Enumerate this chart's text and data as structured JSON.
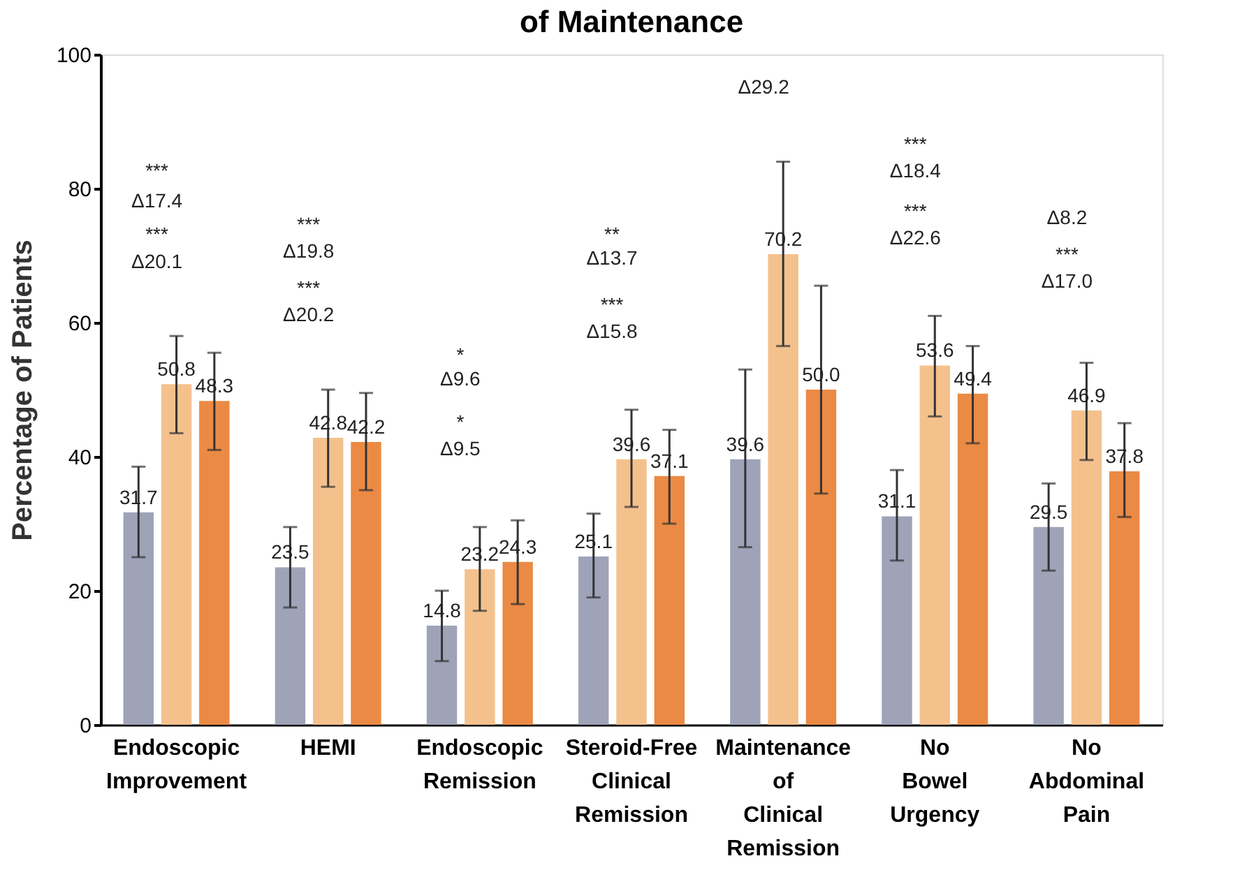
{
  "chart_data": {
    "type": "bar",
    "title": "of Maintenance",
    "ylabel": "Percentage of Patients",
    "categories": [
      "Endoscopic Improvement",
      "HEMI",
      "Endoscopic Remission",
      "Steroid-Free Clinical Remission",
      "Maintenance of Clinical Remission",
      "No Bowel Urgency",
      "No Abdominal Pain"
    ],
    "series": [
      {
        "color": "#9ea3b8",
        "values": [
          31.7,
          23.5,
          14.8,
          25.1,
          39.6,
          31.1,
          29.5
        ],
        "value_labels": [
          "31.7",
          "23.5",
          "14.8",
          "25.1",
          "39.6",
          "31.1",
          "29.5"
        ],
        "errors": [
          [
            25,
            38.5
          ],
          [
            17.5,
            29.5
          ],
          [
            9.5,
            20
          ],
          [
            19,
            31.5
          ],
          [
            26.5,
            53
          ],
          [
            24.5,
            38
          ],
          [
            23,
            36
          ]
        ]
      },
      {
        "color": "#f4c18d",
        "values": [
          50.8,
          42.8,
          23.2,
          39.6,
          70.2,
          53.6,
          46.9
        ],
        "value_labels": [
          "50.8",
          "42.8",
          "23.2",
          "39.6",
          "70.2",
          "53.6",
          "46.9"
        ],
        "errors": [
          [
            43.5,
            58
          ],
          [
            35.5,
            50
          ],
          [
            17,
            29.5
          ],
          [
            32.5,
            47
          ],
          [
            56.5,
            84
          ],
          [
            46,
            61
          ],
          [
            39.5,
            54
          ]
        ]
      },
      {
        "color": "#eb8a44",
        "values": [
          48.3,
          42.2,
          24.3,
          37.1,
          50.0,
          49.4,
          37.8
        ],
        "value_labels": [
          "48.3",
          "42.2",
          "24.3",
          "37.1",
          "50.0",
          "49.4",
          "37.8"
        ],
        "errors": [
          [
            41,
            55.5
          ],
          [
            35,
            49.5
          ],
          [
            18,
            30.5
          ],
          [
            30,
            44
          ],
          [
            34.5,
            65.5
          ],
          [
            42,
            56.5
          ],
          [
            31,
            45
          ]
        ]
      }
    ],
    "ylim": [
      0,
      100
    ],
    "yticks": [
      0,
      20,
      40,
      60,
      80,
      100
    ],
    "grid": false,
    "annotations": [
      "***",
      "Δ17.4",
      "***",
      "Δ20.1",
      "***",
      "Δ19.8",
      "***",
      "Δ20.2",
      "*",
      "Δ9.6",
      "*",
      "Δ9.5",
      "**",
      "Δ13.7",
      "***",
      "Δ15.8",
      "Δ29.2",
      "***",
      "Δ18.4",
      "***",
      "Δ22.6",
      "Δ8.2",
      "***",
      "Δ17.0"
    ]
  }
}
